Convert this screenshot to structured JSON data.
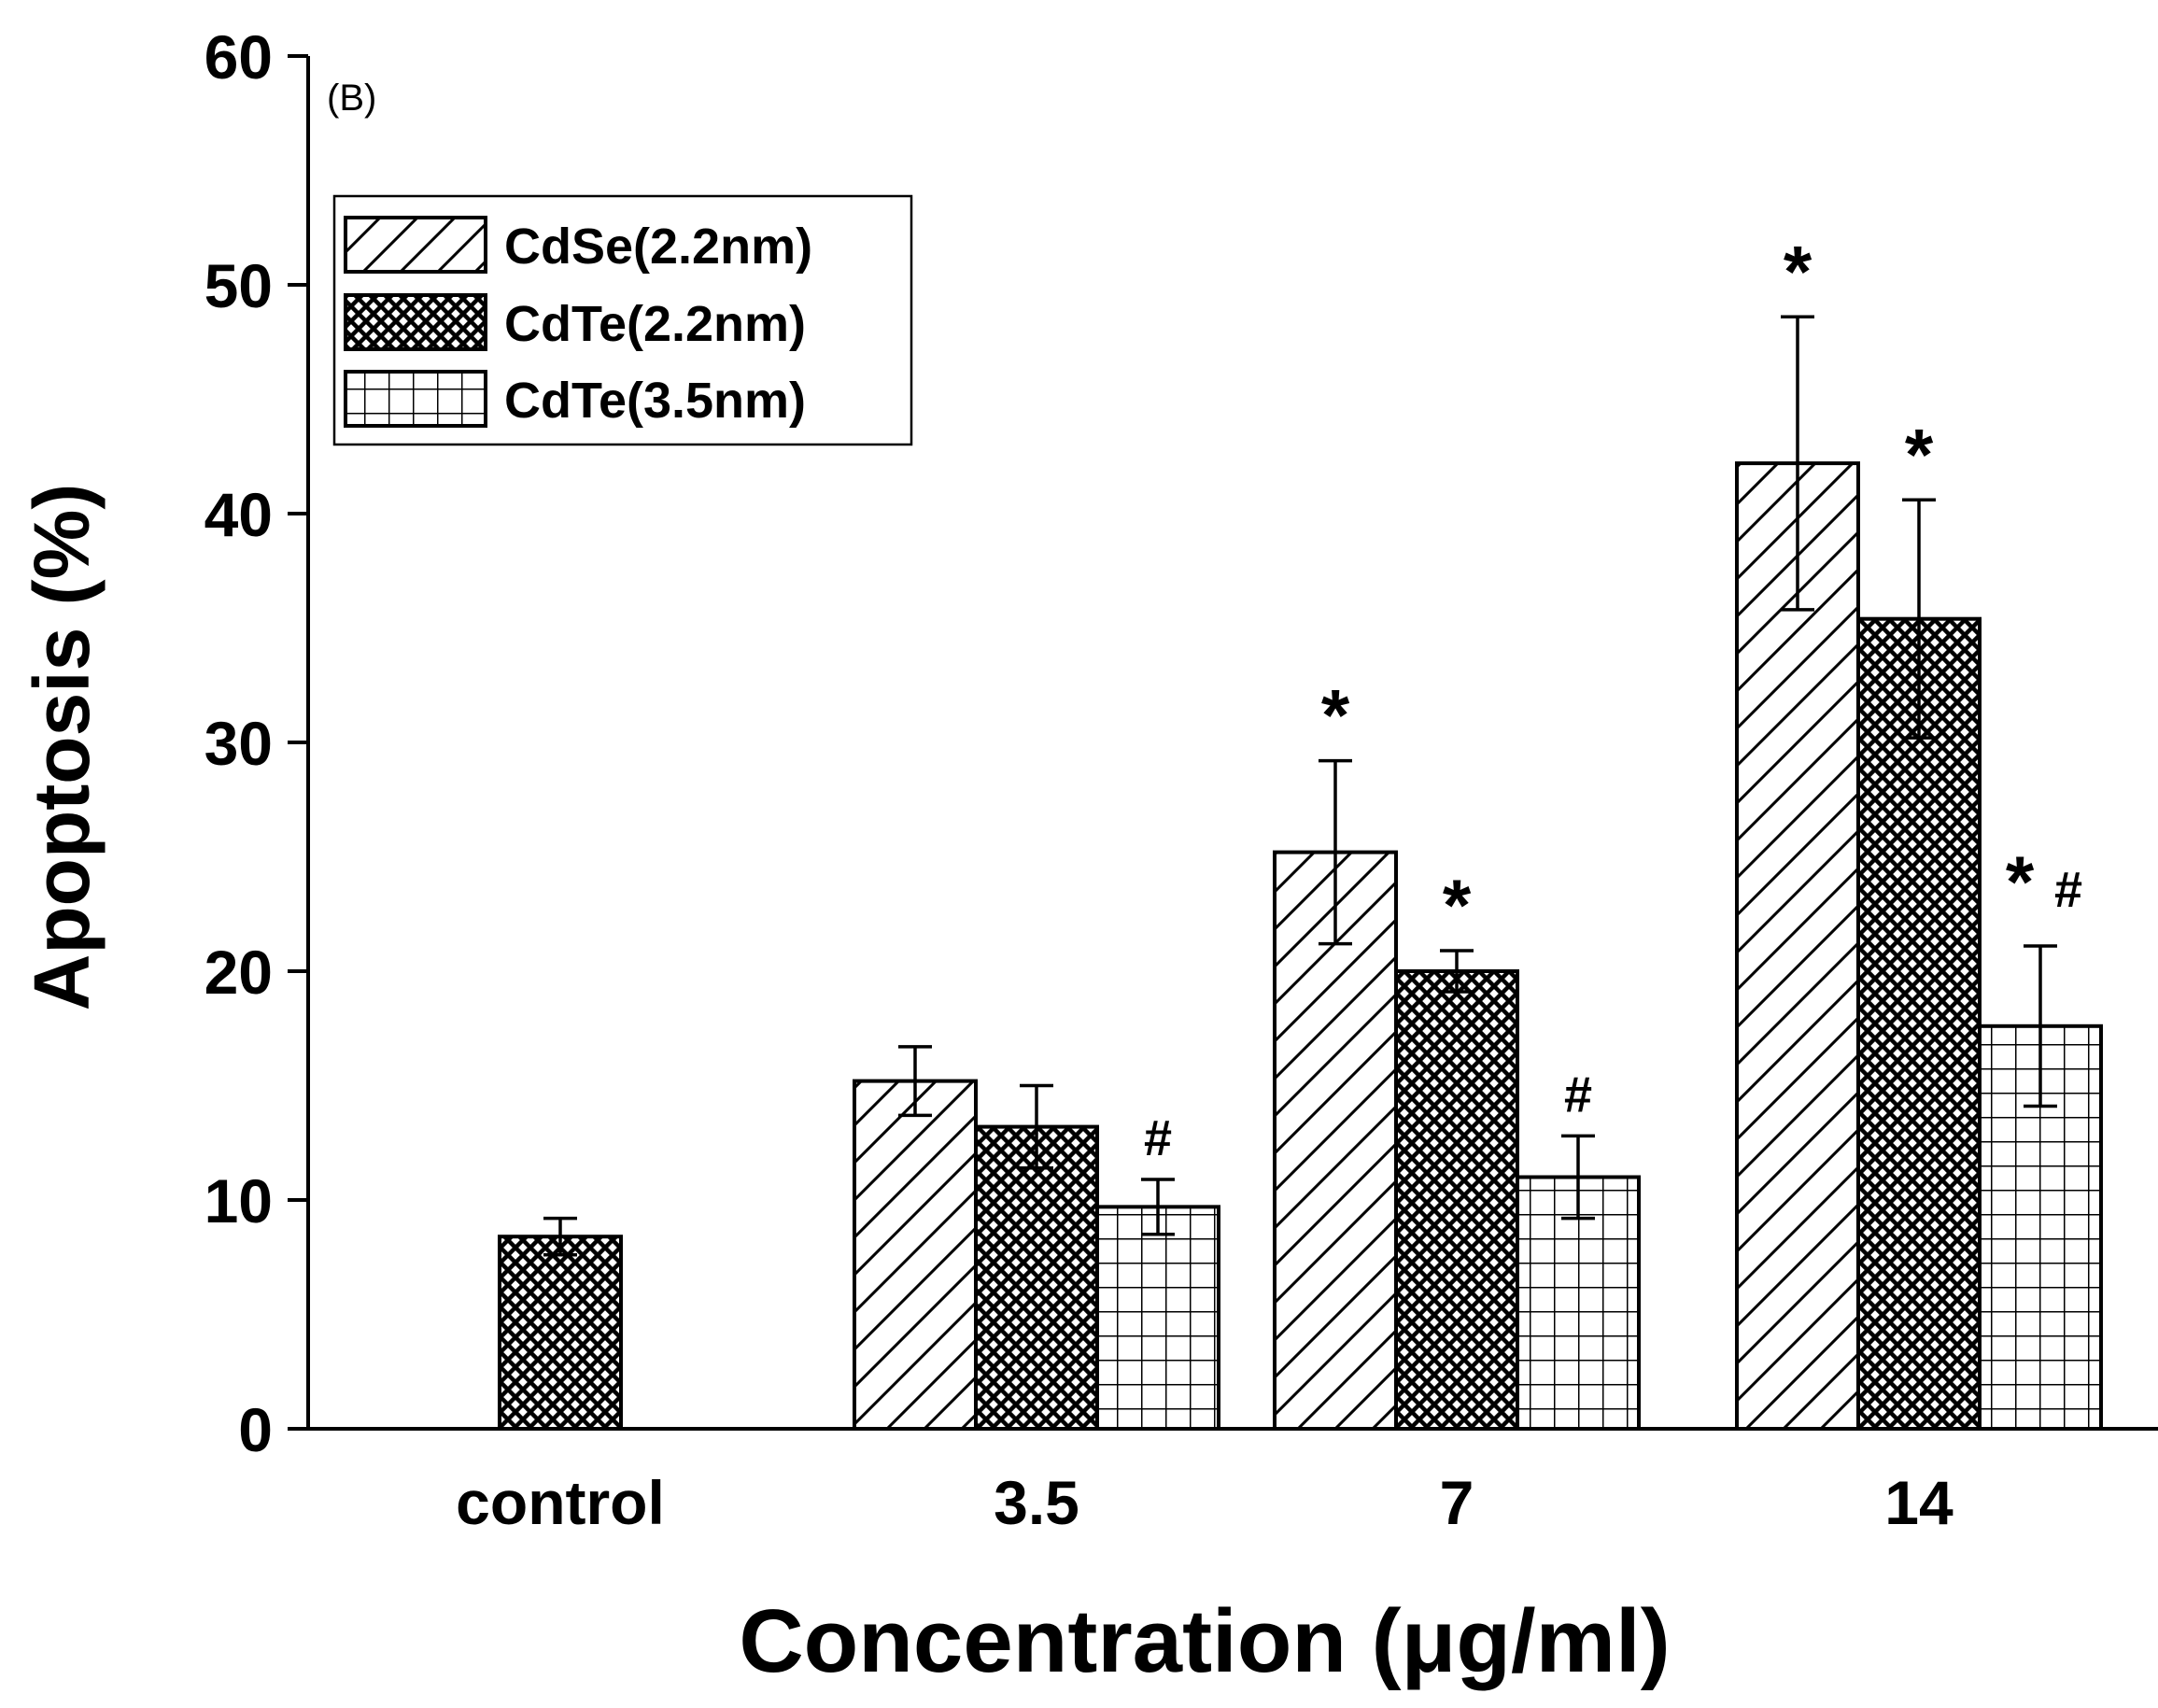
{
  "chart_data": {
    "type": "bar",
    "panel_label": "(B)",
    "xlabel": "Concentration (μg/ml)",
    "ylabel": "Apoptosis (%)",
    "ylim": [
      0,
      60
    ],
    "yticks": [
      0,
      10,
      20,
      30,
      40,
      50,
      60
    ],
    "categories": [
      "control",
      "3.5",
      "7",
      "14"
    ],
    "legend_position": "top-left",
    "series": [
      {
        "name": "CdSe(2.2nm)",
        "pattern": "diagonal",
        "values": [
          null,
          15.2,
          25.2,
          42.2
        ],
        "errors": [
          null,
          1.5,
          4.0,
          6.4
        ],
        "annotations": [
          "",
          "",
          "*",
          "*"
        ]
      },
      {
        "name": "CdTe(2.2nm)",
        "pattern": "crosshatch",
        "values": [
          8.4,
          13.2,
          20.0,
          35.4
        ],
        "errors": [
          0.8,
          1.8,
          0.9,
          5.2
        ],
        "annotations": [
          "",
          "",
          "*",
          "*"
        ]
      },
      {
        "name": "CdTe(3.5nm)",
        "pattern": "grid",
        "values": [
          null,
          9.7,
          11.0,
          17.6
        ],
        "errors": [
          null,
          1.2,
          1.8,
          3.5
        ],
        "annotations": [
          "",
          "#",
          "#",
          "*#"
        ]
      }
    ]
  }
}
